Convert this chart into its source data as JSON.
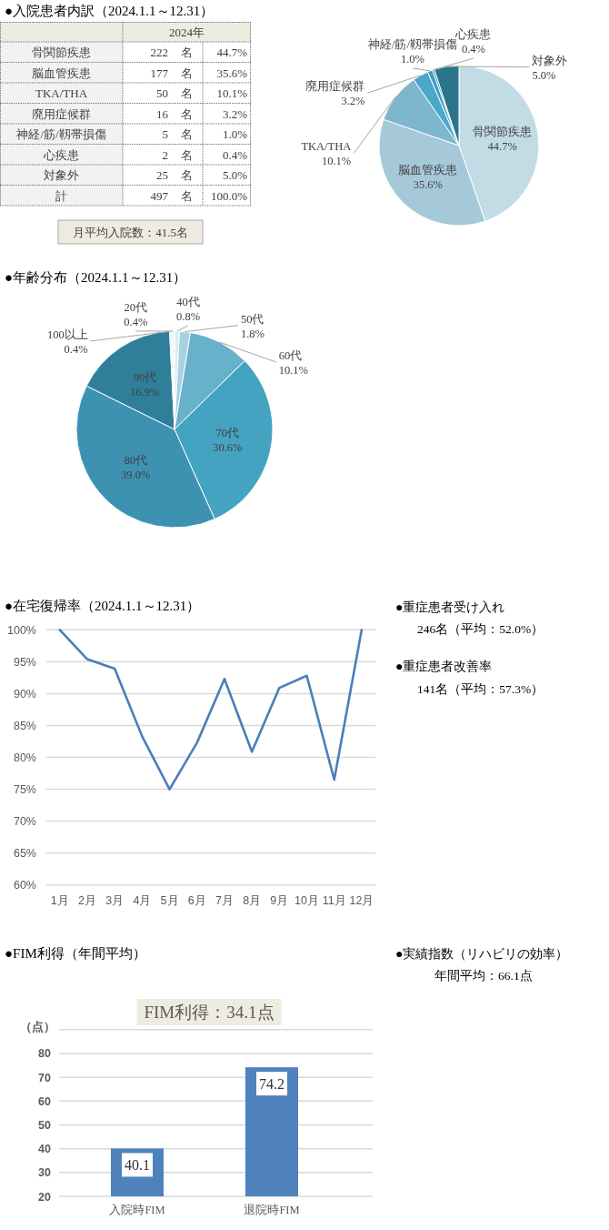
{
  "chart_data": [
    {
      "type": "other",
      "title": "●入院患者内訳（2024.1.1～12.31）",
      "annotations": [
        "2024年",
        "骨関節疾患",
        "222",
        "名",
        "44.7%",
        "脳血管疾患",
        "177",
        "名",
        "35.6%",
        "TKA/THA",
        "50",
        "名",
        "10.1%",
        "廃用症候群",
        "16",
        "名",
        "3.2%",
        "神経/筋/靱帯損傷",
        "5",
        "名",
        "1.0%",
        "心疾患",
        "2",
        "名",
        "0.4%",
        "対象外",
        "25",
        "名",
        "5.0%",
        "計",
        "497",
        "名",
        "100.0%",
        "月平均入院数：41.5名"
      ]
    },
    {
      "type": "pie",
      "categories": [
        "骨関節疾患",
        "脳血管疾患",
        "TKA/THA",
        "廃用症候群",
        "神経/筋/靱帯損傷",
        "心疾患",
        "対象外"
      ],
      "values": [
        44.7,
        35.6,
        10.1,
        3.2,
        1.0,
        0.4,
        5.0
      ],
      "value_labels": [
        "44.7%",
        "35.6%",
        "10.1%",
        "3.2%",
        "1.0%",
        "0.4%",
        "5.0%"
      ],
      "colors": [
        "#c3dbe5",
        "#a6c9da",
        "#7db7ce",
        "#4aa8c8",
        "#3b9ec2",
        "#2d8fae",
        "#2b7489"
      ]
    },
    {
      "type": "pie",
      "title": "●年齢分布（2024.1.1～12.31）",
      "categories": [
        "40代",
        "50代",
        "60代",
        "70代",
        "80代",
        "90代",
        "100以上",
        "20代"
      ],
      "values": [
        0.8,
        1.8,
        10.1,
        30.6,
        39.0,
        16.9,
        0.4,
        0.4
      ],
      "value_labels": [
        "0.8%",
        "1.8%",
        "10.1%",
        "30.6%",
        "39.0%",
        "16.9%",
        "0.4%",
        "0.4%"
      ],
      "colors": [
        "#dcedf2",
        "#a8d2e0",
        "#68b1ca",
        "#44a3c1",
        "#3d92b2",
        "#2f7f9b",
        "#e6f2f6",
        "#eef6f8"
      ]
    },
    {
      "type": "line",
      "title": "●在宅復帰率（2024.1.1～12.31）",
      "categories": [
        "1月",
        "2月",
        "3月",
        "4月",
        "5月",
        "6月",
        "7月",
        "8月",
        "9月",
        "10月",
        "11月",
        "12月"
      ],
      "series": [
        {
          "color": "#4a7ebb",
          "values": [
            100,
            95.4,
            93.9,
            83.3,
            75.0,
            82.3,
            92.3,
            80.9,
            90.9,
            92.8,
            76.5,
            100
          ]
        }
      ],
      "ylim": [
        60,
        100
      ],
      "yticks": [
        {
          "value": 60,
          "label": "60%"
        },
        {
          "value": 65,
          "label": "65%"
        },
        {
          "value": 70,
          "label": "70%"
        },
        {
          "value": 75,
          "label": "75%"
        },
        {
          "value": 80,
          "label": "80%"
        },
        {
          "value": 85,
          "label": "85%"
        },
        {
          "value": 90,
          "label": "90%"
        },
        {
          "value": 95,
          "label": "95%"
        },
        {
          "value": 100,
          "label": "100%"
        }
      ],
      "grid": "y",
      "annotations": [
        "●重症患者受け入れ",
        "246名（平均：52.0%）",
        "●重症患者改善率",
        "141名（平均：57.3%）"
      ]
    },
    {
      "type": "bar",
      "title": "●FIM利得（年間平均）",
      "ylabel": "（点）",
      "categories": [
        "入院時FIM",
        "退院時FIM"
      ],
      "values": [
        40.1,
        74.2
      ],
      "color": "#4f81bd",
      "ylim": [
        20,
        90
      ],
      "yticks": [
        20,
        30,
        40,
        50,
        60,
        70,
        80,
        {
          "value": 90,
          "label": null
        }
      ],
      "grid": "y",
      "data_labels": true,
      "annotations": [
        "FIM利得：34.1点",
        "●実績指数（リハビリの効率）",
        "年間平均：66.1点"
      ]
    }
  ]
}
